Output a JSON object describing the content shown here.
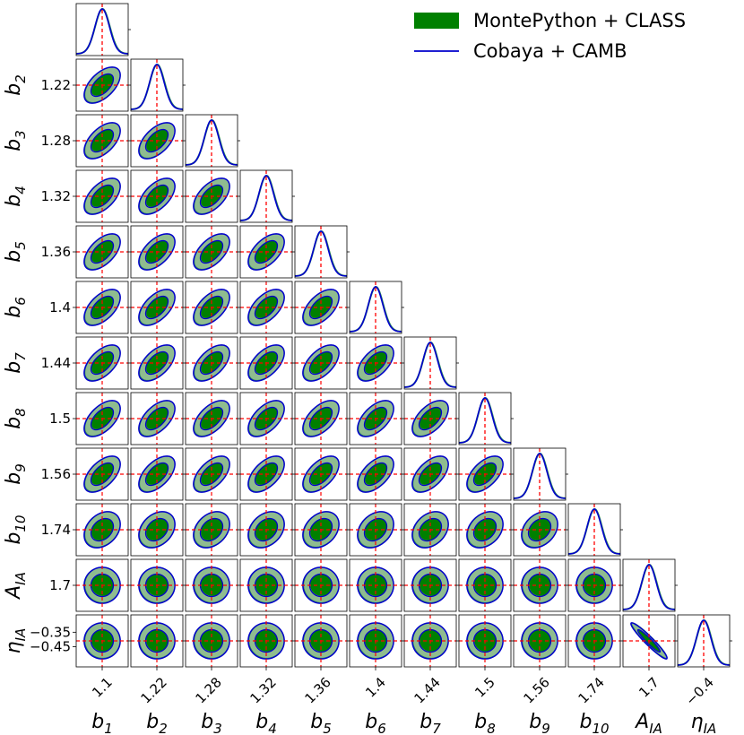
{
  "chart_data": {
    "type": "triangle-corner-plot",
    "legend": {
      "placement": "top-right",
      "entries": [
        {
          "label": "MontePython + CLASS",
          "style": "filled",
          "color": "#008000"
        },
        {
          "label": "Cobaya + CAMB",
          "style": "line",
          "color": "#0000cc"
        }
      ]
    },
    "colors": {
      "outer_fill": "#8fbc8f",
      "inner_fill": "#008000",
      "cobaya_line": "#0000cc",
      "montepython_line": "#2e8b57",
      "fiducial_line": "#ff0000"
    },
    "parameters": [
      {
        "name": "b",
        "sub": "1",
        "fiducial": 1.1,
        "tick_label": "1.1",
        "sigma": 0.04
      },
      {
        "name": "b",
        "sub": "2",
        "fiducial": 1.22,
        "tick_label": "1.22",
        "sigma": 0.04
      },
      {
        "name": "b",
        "sub": "3",
        "fiducial": 1.28,
        "tick_label": "1.28",
        "sigma": 0.04
      },
      {
        "name": "b",
        "sub": "4",
        "fiducial": 1.32,
        "tick_label": "1.32",
        "sigma": 0.04
      },
      {
        "name": "b",
        "sub": "5",
        "fiducial": 1.36,
        "tick_label": "1.36",
        "sigma": 0.04
      },
      {
        "name": "b",
        "sub": "6",
        "fiducial": 1.4,
        "tick_label": "1.4",
        "sigma": 0.04
      },
      {
        "name": "b",
        "sub": "7",
        "fiducial": 1.44,
        "tick_label": "1.44",
        "sigma": 0.04
      },
      {
        "name": "b",
        "sub": "8",
        "fiducial": 1.5,
        "tick_label": "1.5",
        "sigma": 0.04
      },
      {
        "name": "b",
        "sub": "9",
        "fiducial": 1.56,
        "tick_label": "1.56",
        "sigma": 0.04
      },
      {
        "name": "b",
        "sub": "10",
        "fiducial": 1.74,
        "tick_label": "1.74",
        "sigma": 0.05
      },
      {
        "name": "A",
        "sub": "IA",
        "fiducial": 1.7,
        "tick_label": "1.7",
        "sigma": 0.05
      },
      {
        "name": "η",
        "sub": "IA",
        "fiducial": -0.41,
        "tick_label": "−0.4",
        "sigma": 0.05
      }
    ],
    "extra_y_ticks": [
      {
        "row": 11,
        "value": -0.35,
        "label": "−0.35"
      },
      {
        "row": 11,
        "value": -0.45,
        "label": "−0.45"
      }
    ],
    "correlation": {
      "bias_bias": 0.55,
      "bias_b10": 0.3,
      "bias_IA": 0.0,
      "AIA_etaIA": -0.95
    }
  }
}
